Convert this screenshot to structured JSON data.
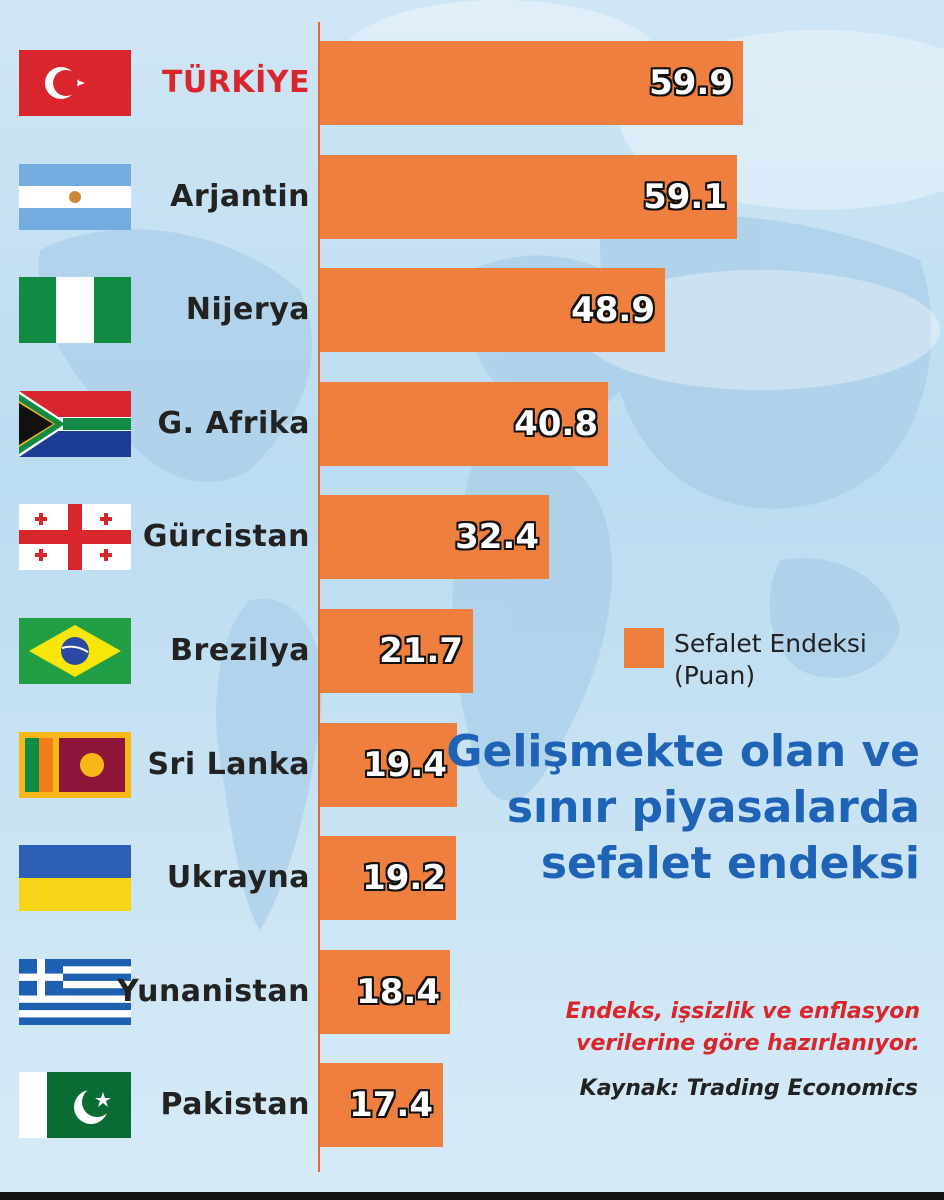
{
  "chart_data": {
    "type": "bar",
    "orientation": "horizontal",
    "categories": [
      "TÜRKİYE",
      "Arjantin",
      "Nijerya",
      "G. Afrika",
      "Gürcistan",
      "Brezilya",
      "Sri Lanka",
      "Ukrayna",
      "Yunanistan",
      "Pakistan"
    ],
    "values": [
      59.9,
      59.1,
      48.9,
      40.8,
      32.4,
      21.7,
      19.4,
      19.2,
      18.4,
      17.4
    ],
    "data_labels": [
      "59.9",
      "59.1",
      "48.9",
      "40.8",
      "32.4",
      "21.7",
      "19.4",
      "19.2",
      "18.4",
      "17.4"
    ],
    "legend": "Sefalet Endeksi (Puan)",
    "legend_position": "right-middle",
    "title": "Gelişmekte olan ve sınır piyasalarda sefalet endeksi",
    "subtitle": "Endeks, işsizlik ve enflasyon verilerine göre hazırlanıyor.",
    "source": "Kaynak: Trading Economics",
    "xlim": [
      0,
      70
    ],
    "grid": false,
    "colors": {
      "bar": "#ee7f3f",
      "highlight_label": "#d8262c",
      "title": "#1f63b6",
      "subtitle": "#d8262c"
    }
  },
  "flags": [
    "turkey-flag-icon",
    "argentina-flag-icon",
    "nigeria-flag-icon",
    "south-africa-flag-icon",
    "georgia-flag-icon",
    "brazil-flag-icon",
    "sri-lanka-flag-icon",
    "ukraine-flag-icon",
    "greece-flag-icon",
    "pakistan-flag-icon"
  ]
}
